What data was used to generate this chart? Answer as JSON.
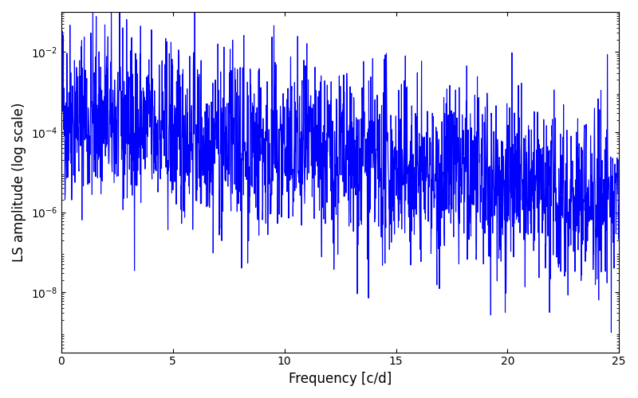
{
  "title": "",
  "xlabel": "Frequency [c/d]",
  "ylabel": "LS amplitude (log scale)",
  "line_color": "#0000ff",
  "line_width": 0.8,
  "xlim": [
    0,
    25
  ],
  "ylim_log": [
    -9.5,
    -1.0
  ],
  "figsize": [
    8.0,
    5.0
  ],
  "dpi": 100,
  "yscale": "log",
  "yticks": [
    1e-08,
    1e-06,
    0.0001,
    0.01
  ],
  "xticks": [
    0,
    5,
    10,
    15,
    20,
    25
  ],
  "seed": 42,
  "n_points": 2000,
  "freq_max": 25.0
}
